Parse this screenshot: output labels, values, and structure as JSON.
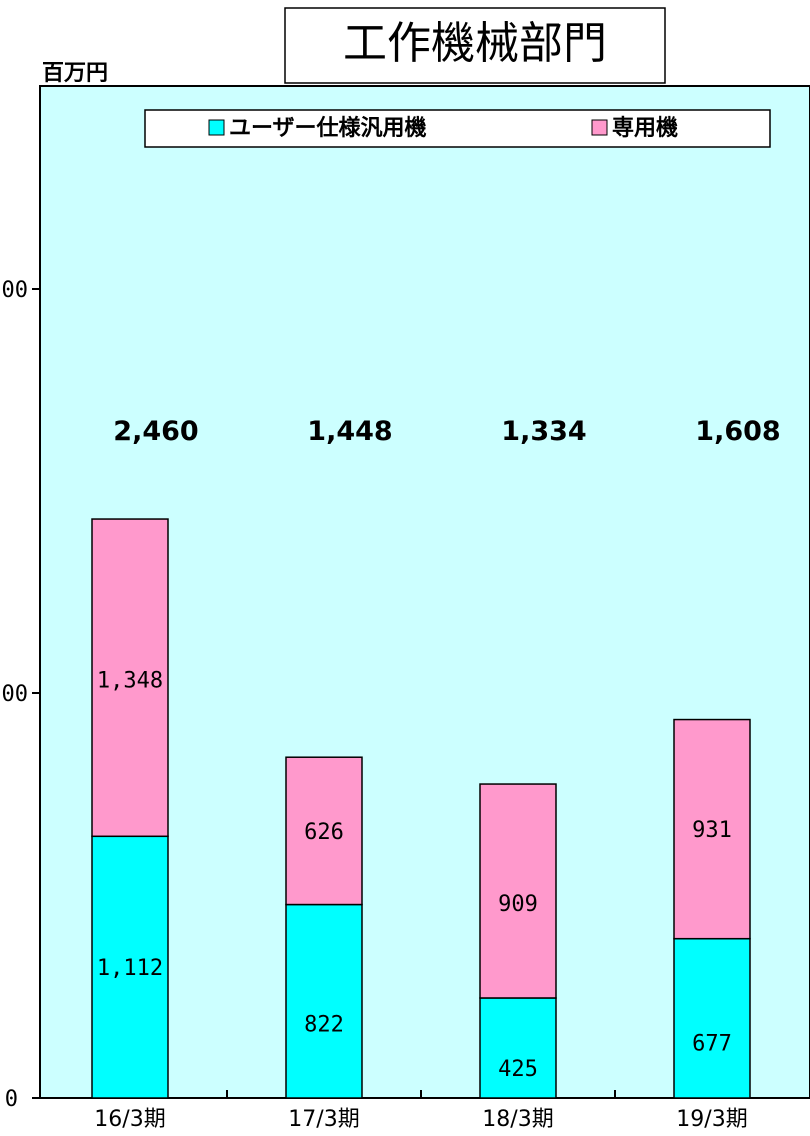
{
  "chart_data": {
    "type": "bar",
    "stacked": true,
    "title": "工作機械部門",
    "ylabel": "百万円",
    "xlabel": "",
    "categories": [
      "16/3期",
      "17/3期",
      "18/3期",
      "19/3期"
    ],
    "series": [
      {
        "name": "ユーザー仕様汎用機",
        "values": [
          1112,
          822,
          425,
          677
        ],
        "labels": [
          "1,112",
          "822",
          "425",
          "677"
        ]
      },
      {
        "name": "専用機",
        "values": [
          1348,
          626,
          909,
          931
        ],
        "labels": [
          "1,348",
          "626",
          "909",
          "931"
        ]
      }
    ],
    "totals": [
      "2,460",
      "1,448",
      "1,334",
      "1,608"
    ],
    "yticks": [
      "0",
      "00",
      "00"
    ],
    "ylim": [
      0,
      4300
    ],
    "legend_position": "top",
    "grid": false,
    "colors": {
      "series1": "#00ffff",
      "series2": "#ff99cc",
      "plot_bg": "#ccffff"
    }
  }
}
